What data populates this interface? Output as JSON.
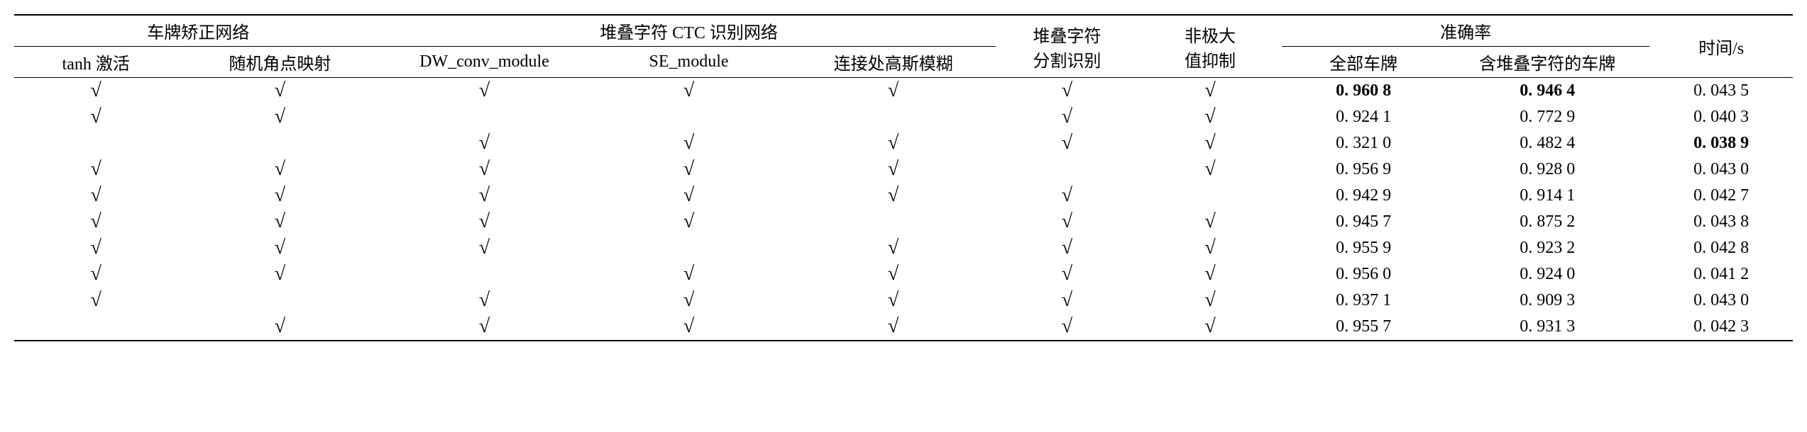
{
  "table": {
    "header": {
      "group1": "车牌矫正网络",
      "group2": "堆叠字符 CTC 识别网络",
      "col_stack_split": "堆叠字符\n分割识别",
      "col_nms": "非极大\n值抑制",
      "group_acc": "准确率",
      "col_time": "时间/s",
      "sub1": "tanh 激活",
      "sub2": "随机角点映射",
      "sub3": "DW_conv_module",
      "sub4": "SE_module",
      "sub5": "连接处高斯模糊",
      "sub_acc1": "全部车牌",
      "sub_acc2": "含堆叠字符的车牌"
    },
    "check": "√",
    "rows": [
      {
        "c": [
          true,
          true,
          true,
          true,
          true,
          true,
          true
        ],
        "acc1": "0. 960 8",
        "acc2": "0. 946 4",
        "time": "0. 043 5",
        "bold": [
          "acc1",
          "acc2"
        ]
      },
      {
        "c": [
          true,
          true,
          false,
          false,
          false,
          true,
          true
        ],
        "acc1": "0. 924 1",
        "acc2": "0. 772 9",
        "time": "0. 040 3",
        "bold": []
      },
      {
        "c": [
          false,
          false,
          true,
          true,
          true,
          true,
          true
        ],
        "acc1": "0. 321 0",
        "acc2": "0. 482 4",
        "time": "0. 038 9",
        "bold": [
          "time"
        ]
      },
      {
        "c": [
          true,
          true,
          true,
          true,
          true,
          false,
          true
        ],
        "acc1": "0. 956 9",
        "acc2": "0. 928 0",
        "time": "0. 043 0",
        "bold": []
      },
      {
        "c": [
          true,
          true,
          true,
          true,
          true,
          true,
          false
        ],
        "acc1": "0. 942 9",
        "acc2": "0. 914 1",
        "time": "0. 042 7",
        "bold": []
      },
      {
        "c": [
          true,
          true,
          true,
          true,
          false,
          true,
          true
        ],
        "acc1": "0. 945 7",
        "acc2": "0. 875 2",
        "time": "0. 043 8",
        "bold": []
      },
      {
        "c": [
          true,
          true,
          true,
          false,
          true,
          true,
          true
        ],
        "acc1": "0. 955 9",
        "acc2": "0. 923 2",
        "time": "0. 042 8",
        "bold": []
      },
      {
        "c": [
          true,
          true,
          false,
          true,
          true,
          true,
          true
        ],
        "acc1": "0. 956 0",
        "acc2": "0. 924 0",
        "time": "0. 041 2",
        "bold": []
      },
      {
        "c": [
          true,
          false,
          true,
          true,
          true,
          true,
          true
        ],
        "acc1": "0. 937 1",
        "acc2": "0. 909 3",
        "time": "0. 043 0",
        "bold": []
      },
      {
        "c": [
          false,
          true,
          true,
          true,
          true,
          true,
          true
        ],
        "acc1": "0. 955 7",
        "acc2": "0. 931 3",
        "time": "0. 042 3",
        "bold": []
      }
    ]
  }
}
